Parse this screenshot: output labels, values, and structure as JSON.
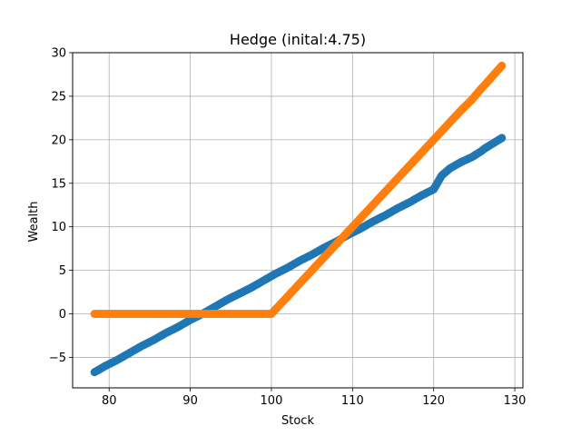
{
  "chart_data": {
    "type": "scatter",
    "title": "Hedge (inital:4.75)",
    "xlabel": "Stock",
    "ylabel": "Wealth",
    "xlim": [
      75.5,
      131
    ],
    "ylim": [
      -8.5,
      30
    ],
    "xticks": [
      80,
      90,
      100,
      110,
      120,
      130
    ],
    "yticks": [
      -5,
      0,
      5,
      10,
      15,
      20,
      25,
      30
    ],
    "ytick_labels": [
      "−5",
      "0",
      "5",
      "10",
      "15",
      "20",
      "25",
      "30"
    ],
    "grid": true,
    "legend": "none",
    "series": [
      {
        "color": "#1f77b4",
        "points": [
          [
            78.2,
            -6.7
          ],
          [
            79.5,
            -6.0
          ],
          [
            81.0,
            -5.3
          ],
          [
            82.5,
            -4.5
          ],
          [
            84.0,
            -3.7
          ],
          [
            85.5,
            -3.0
          ],
          [
            87.0,
            -2.2
          ],
          [
            88.5,
            -1.5
          ],
          [
            90.0,
            -0.7
          ],
          [
            91.5,
            0.0
          ],
          [
            93.0,
            0.8
          ],
          [
            94.5,
            1.6
          ],
          [
            96.0,
            2.3
          ],
          [
            97.5,
            3.0
          ],
          [
            99.0,
            3.8
          ],
          [
            100.5,
            4.6
          ],
          [
            102.0,
            5.3
          ],
          [
            103.5,
            6.1
          ],
          [
            105.0,
            6.8
          ],
          [
            106.5,
            7.6
          ],
          [
            108.0,
            8.3
          ],
          [
            109.5,
            9.1
          ],
          [
            111.0,
            9.8
          ],
          [
            112.5,
            10.6
          ],
          [
            114.0,
            11.3
          ],
          [
            115.5,
            12.1
          ],
          [
            117.0,
            12.8
          ],
          [
            118.5,
            13.6
          ],
          [
            120.0,
            14.3
          ],
          [
            121.0,
            15.9
          ],
          [
            122.0,
            16.7
          ],
          [
            123.3,
            17.4
          ],
          [
            124.7,
            18.0
          ],
          [
            125.9,
            18.7
          ],
          [
            126.3,
            19.0
          ],
          [
            128.4,
            20.2
          ]
        ]
      },
      {
        "color": "#ff7f0e",
        "points": [
          [
            78.2,
            0.0
          ],
          [
            79.5,
            0.0
          ],
          [
            81.0,
            0.0
          ],
          [
            82.5,
            0.0
          ],
          [
            84.0,
            0.0
          ],
          [
            85.5,
            0.0
          ],
          [
            87.0,
            0.0
          ],
          [
            88.5,
            0.0
          ],
          [
            90.0,
            0.0
          ],
          [
            91.5,
            0.0
          ],
          [
            93.0,
            0.0
          ],
          [
            94.5,
            0.0
          ],
          [
            96.0,
            0.0
          ],
          [
            97.5,
            0.0
          ],
          [
            99.0,
            0.0
          ],
          [
            100.0,
            0.0
          ],
          [
            101.0,
            1.0
          ],
          [
            102.0,
            2.0
          ],
          [
            103.0,
            3.0
          ],
          [
            104.0,
            4.0
          ],
          [
            105.0,
            5.0
          ],
          [
            106.0,
            6.0
          ],
          [
            107.0,
            7.0
          ],
          [
            108.0,
            8.0
          ],
          [
            109.0,
            9.0
          ],
          [
            110.0,
            10.0
          ],
          [
            111.5,
            11.5
          ],
          [
            113.0,
            13.0
          ],
          [
            114.5,
            14.5
          ],
          [
            116.0,
            16.0
          ],
          [
            117.5,
            17.5
          ],
          [
            119.0,
            19.0
          ],
          [
            120.5,
            20.5
          ],
          [
            122.0,
            22.0
          ],
          [
            123.3,
            23.3
          ],
          [
            124.7,
            24.6
          ],
          [
            125.9,
            25.9
          ],
          [
            126.3,
            26.3
          ],
          [
            128.4,
            28.5
          ]
        ]
      }
    ]
  }
}
